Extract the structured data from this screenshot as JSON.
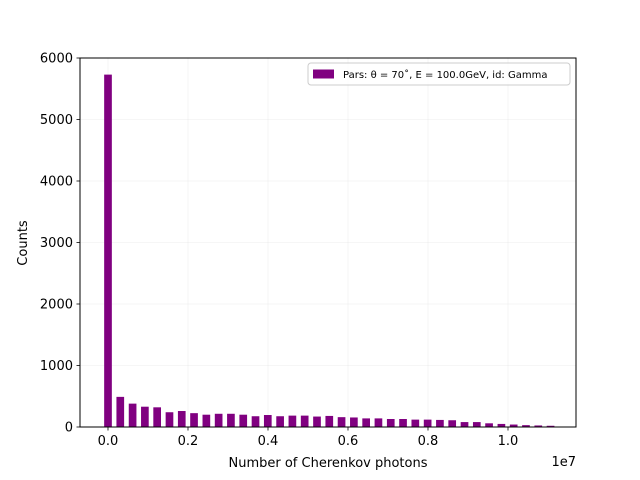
{
  "chart_data": {
    "type": "bar",
    "bar_color": "#800080",
    "xlabel": "Number of Cherenkov photons",
    "ylabel": "Counts",
    "x_offset_label": "1e7",
    "xlim": [
      -0.07,
      1.17
    ],
    "ylim": [
      0,
      6000
    ],
    "x_ticks": [
      0.0,
      0.2,
      0.4,
      0.6,
      0.8,
      1.0
    ],
    "x_tick_labels": [
      "0.0",
      "0.2",
      "0.4",
      "0.6",
      "0.8",
      "1.0"
    ],
    "y_ticks": [
      0,
      1000,
      2000,
      3000,
      4000,
      5000,
      6000
    ],
    "y_tick_labels": [
      "0",
      "1000",
      "2000",
      "3000",
      "4000",
      "5000",
      "6000"
    ],
    "grid": true,
    "legend": {
      "position": "upper right",
      "entries": [
        "Pars: θ = 70˚, E = 100.0GeV, id: Gamma"
      ]
    },
    "bar_width": 0.0192,
    "x": [
      0.0,
      0.0307,
      0.0615,
      0.0922,
      0.1229,
      0.1537,
      0.1844,
      0.2151,
      0.2459,
      0.2766,
      0.3073,
      0.3381,
      0.3688,
      0.3995,
      0.4303,
      0.461,
      0.4917,
      0.5225,
      0.5532,
      0.5839,
      0.6147,
      0.6454,
      0.6761,
      0.7069,
      0.7376,
      0.7683,
      0.7991,
      0.8298,
      0.8605,
      0.8913,
      0.922,
      0.9527,
      0.9835,
      1.0142,
      1.0449,
      1.0757,
      1.1064
    ],
    "values": [
      5730,
      490,
      380,
      330,
      320,
      240,
      260,
      225,
      200,
      215,
      215,
      200,
      175,
      195,
      175,
      185,
      185,
      170,
      180,
      160,
      155,
      140,
      140,
      130,
      130,
      120,
      120,
      115,
      110,
      80,
      80,
      60,
      50,
      40,
      30,
      25,
      20
    ]
  }
}
